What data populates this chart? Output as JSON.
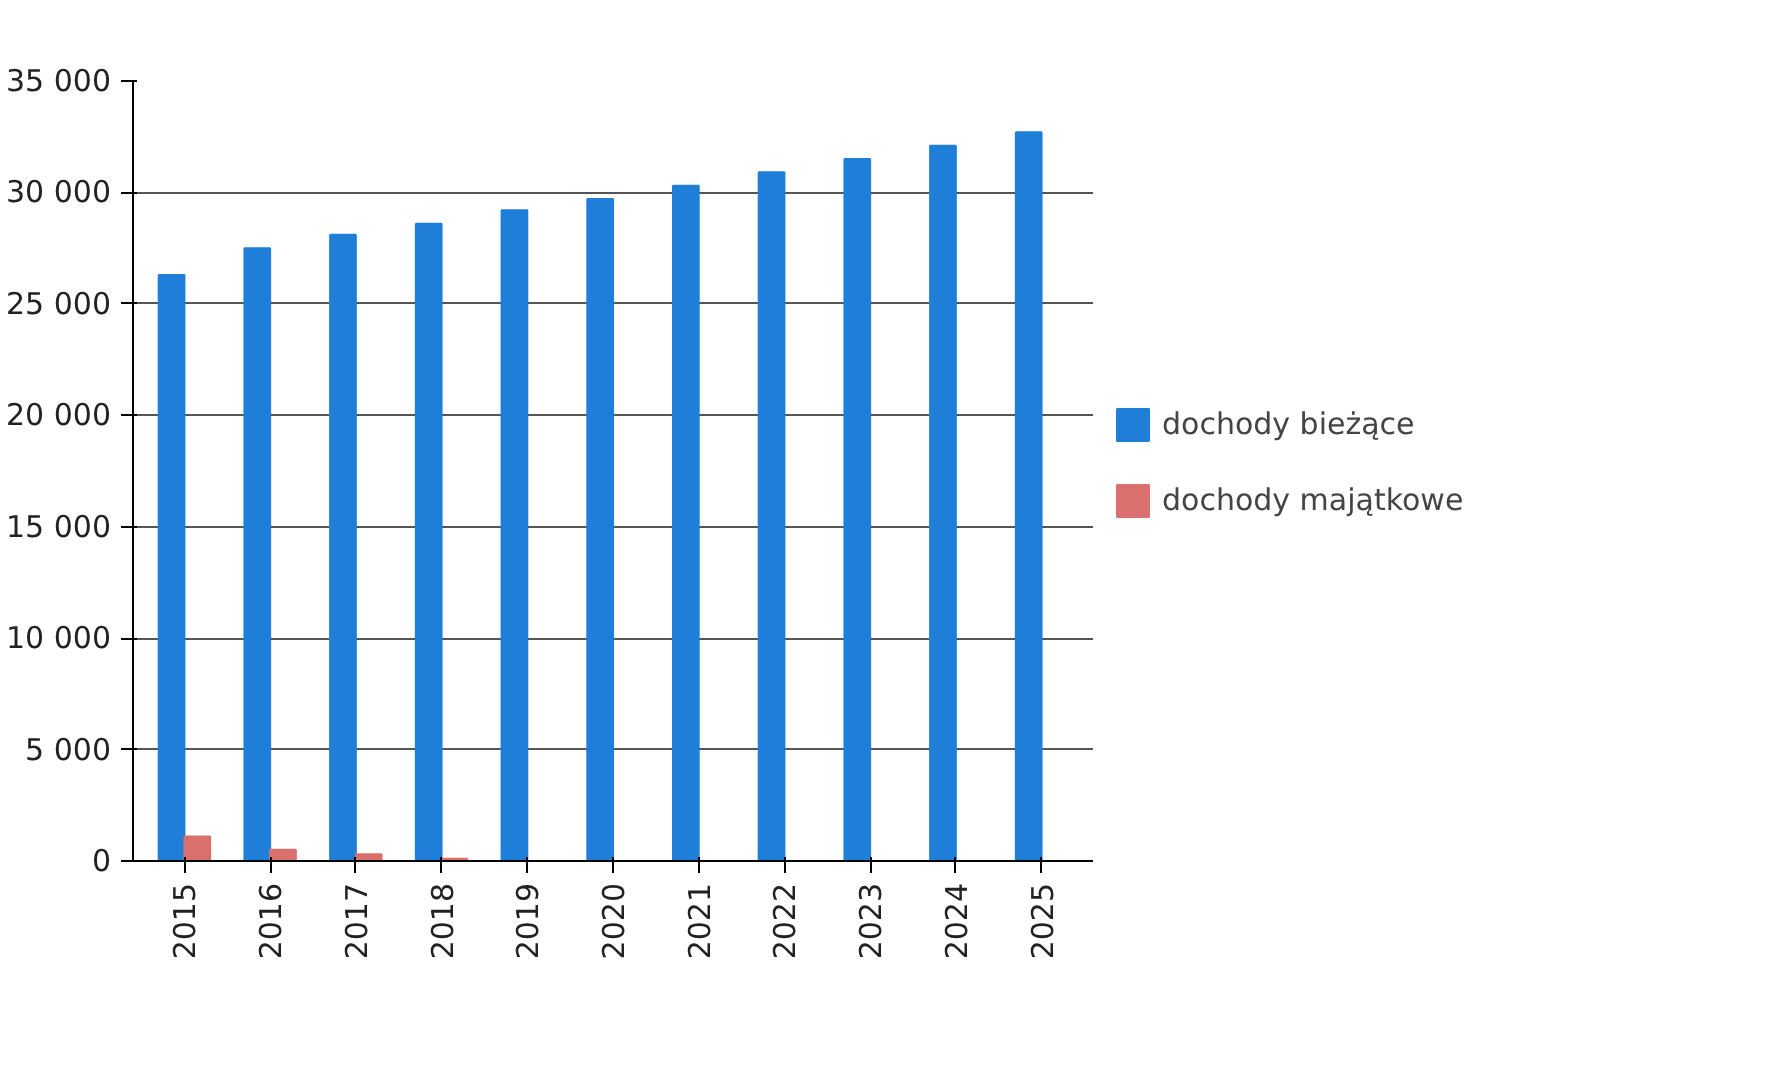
{
  "chart_data": {
    "type": "bar",
    "categories": [
      "2015",
      "2016",
      "2017",
      "2018",
      "2019",
      "2020",
      "2021",
      "2022",
      "2023",
      "2024",
      "2025"
    ],
    "series": [
      {
        "name": "dochody bieżące",
        "color": "#1f7fd8",
        "values": [
          26300,
          27500,
          28100,
          28600,
          29200,
          29700,
          30300,
          30900,
          31500,
          32100,
          32700
        ]
      },
      {
        "name": "dochody majątkowe",
        "color": "#d9706e",
        "values": [
          1100,
          500,
          300,
          100,
          0,
          0,
          0,
          0,
          0,
          0,
          0
        ]
      }
    ],
    "ylim": [
      0,
      35000
    ],
    "yticks": [
      {
        "value": 0,
        "label": "0"
      },
      {
        "value": 5000,
        "label": "5 000"
      },
      {
        "value": 10000,
        "label": "10 000"
      },
      {
        "value": 15000,
        "label": "15 000"
      },
      {
        "value": 20000,
        "label": "20 000"
      },
      {
        "value": 25000,
        "label": "25 000"
      },
      {
        "value": 30000,
        "label": "30 000"
      },
      {
        "value": 35000,
        "label": "35 000"
      }
    ],
    "grid": "y",
    "legend": "right"
  }
}
